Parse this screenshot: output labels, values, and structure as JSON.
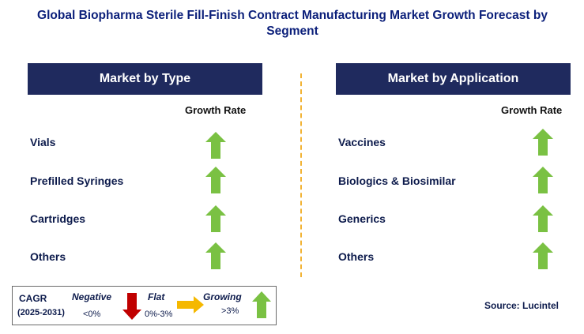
{
  "title": "Global Biopharma Sterile Fill-Finish Contract Manufacturing Market Growth Forecast by Segment",
  "left_panel": {
    "header": "Market by Type",
    "growth_header": "Growth Rate",
    "rows": [
      {
        "label": "Vials",
        "trend": "growing"
      },
      {
        "label": "Prefilled Syringes",
        "trend": "growing"
      },
      {
        "label": "Cartridges",
        "trend": "growing"
      },
      {
        "label": "Others",
        "trend": "growing"
      }
    ]
  },
  "right_panel": {
    "header": "Market by Application",
    "growth_header": "Growth Rate",
    "rows": [
      {
        "label": "Vaccines",
        "trend": "growing"
      },
      {
        "label": "Biologics & Biosimilar",
        "trend": "growing"
      },
      {
        "label": "Generics",
        "trend": "growing"
      },
      {
        "label": "Others",
        "trend": "growing"
      }
    ]
  },
  "legend": {
    "cagr_label": "CAGR",
    "period": "(2025-2031)",
    "negative_label": "Negative",
    "negative_range": "<0%",
    "flat_label": "Flat",
    "flat_range": "0%-3%",
    "growing_label": "Growing",
    "growing_range": ">3%"
  },
  "source": "Source: Lucintel",
  "colors": {
    "header_bg": "#1f2a5e",
    "growing_arrow": "#7ac143",
    "flat_arrow": "#f5b800",
    "negative_arrow": "#c00000",
    "divider": "#f2b233"
  }
}
